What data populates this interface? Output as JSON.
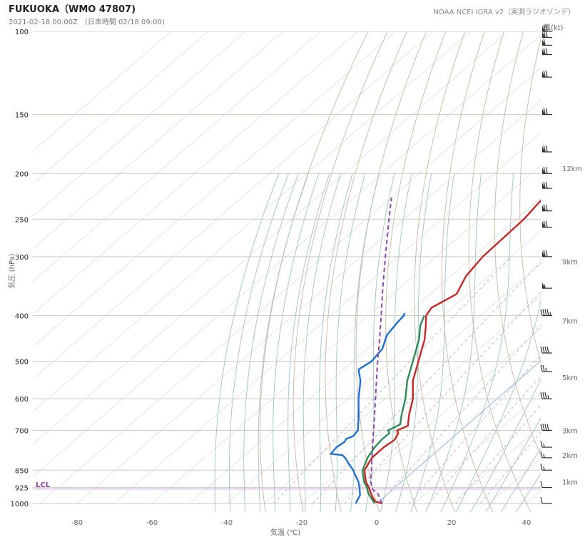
{
  "header": {
    "title": "FUKUOKA（WMO 47807)",
    "subtitle": "2021-02-18 00:00Z　(日本時間 02/18 09:00)",
    "source": "NOAA NCEI IGRA v2（実測ラジオゾンデ）"
  },
  "chart_data": {
    "type": "skew-t",
    "xlabel": "気温 (℃)",
    "ylabel": "気圧 (hPa)",
    "xlim": [
      -92,
      44
    ],
    "ylim": [
      1030,
      100
    ],
    "y_scale": "log",
    "x_ticks": [
      -80,
      -60,
      -40,
      -20,
      0,
      20,
      40
    ],
    "pressure_ticks": [
      100,
      150,
      200,
      250,
      300,
      400,
      500,
      600,
      700,
      850,
      925,
      1000
    ],
    "wind_label": "風(kt)",
    "lcl_label": "LCL",
    "lcl_pressure": 932,
    "height_labels": [
      {
        "label": "1km",
        "p": 900
      },
      {
        "label": "2km",
        "p": 790
      },
      {
        "label": "3km",
        "p": 700
      },
      {
        "label": "5km",
        "p": 540
      },
      {
        "label": "7km",
        "p": 410
      },
      {
        "label": "9km",
        "p": 307
      },
      {
        "label": "12km",
        "p": 195
      }
    ],
    "series": [
      {
        "key": "temperature",
        "color": "#c62828",
        "points": [
          [
            1000,
            1.4
          ],
          [
            990,
            -1
          ],
          [
            975,
            -2.5
          ],
          [
            950,
            -4.8
          ],
          [
            925,
            -7
          ],
          [
            900,
            -9.5
          ],
          [
            875,
            -11.5
          ],
          [
            850,
            -13.5
          ],
          [
            800,
            -15.3
          ],
          [
            760,
            -15.4
          ],
          [
            735,
            -14.8
          ],
          [
            730,
            -14.9
          ],
          [
            710,
            -15.8
          ],
          [
            700,
            -17
          ],
          [
            685,
            -15.5
          ],
          [
            650,
            -18.5
          ],
          [
            600,
            -22.5
          ],
          [
            550,
            -28
          ],
          [
            500,
            -32.5
          ],
          [
            450,
            -37.5
          ],
          [
            420,
            -41.5
          ],
          [
            400,
            -44.5
          ],
          [
            385,
            -45.5
          ],
          [
            360,
            -43
          ],
          [
            330,
            -46
          ],
          [
            300,
            -47.5
          ],
          [
            250,
            -48
          ],
          [
            200,
            -51
          ],
          [
            170,
            -55
          ],
          [
            150,
            -57
          ],
          [
            130,
            -59
          ],
          [
            120,
            -58
          ],
          [
            110,
            -59
          ],
          [
            100,
            -61
          ]
        ]
      },
      {
        "key": "wetbulb",
        "color": "#2e8b57",
        "points": [
          [
            1000,
            -0.5
          ],
          [
            975,
            -3
          ],
          [
            950,
            -5.5
          ],
          [
            925,
            -7.5
          ],
          [
            900,
            -10
          ],
          [
            875,
            -12
          ],
          [
            850,
            -14
          ],
          [
            800,
            -16.5
          ],
          [
            760,
            -17.8
          ],
          [
            730,
            -18.3
          ],
          [
            710,
            -18.2
          ],
          [
            700,
            -19.4
          ],
          [
            680,
            -18
          ],
          [
            650,
            -20.5
          ],
          [
            600,
            -24.5
          ],
          [
            550,
            -29.5
          ],
          [
            500,
            -34
          ],
          [
            450,
            -39
          ],
          [
            420,
            -43
          ],
          [
            400,
            -45
          ]
        ]
      },
      {
        "key": "dewpoint",
        "color": "#1f6fd1",
        "points": [
          [
            1000,
            -5.5
          ],
          [
            990,
            -6
          ],
          [
            960,
            -7
          ],
          [
            925,
            -9.5
          ],
          [
            900,
            -11.5
          ],
          [
            875,
            -14
          ],
          [
            850,
            -16.5
          ],
          [
            825,
            -19.5
          ],
          [
            800,
            -22.5
          ],
          [
            790,
            -24
          ],
          [
            785,
            -27.5
          ],
          [
            760,
            -28
          ],
          [
            740,
            -27.5
          ],
          [
            730,
            -28
          ],
          [
            720,
            -27
          ],
          [
            700,
            -27.5
          ],
          [
            660,
            -31
          ],
          [
            600,
            -37
          ],
          [
            550,
            -42
          ],
          [
            520,
            -46
          ],
          [
            500,
            -45
          ],
          [
            470,
            -46
          ],
          [
            440,
            -49
          ],
          [
            415,
            -50
          ],
          [
            400,
            -50.5
          ],
          [
            395,
            -51
          ]
        ]
      },
      {
        "key": "parcel",
        "color": "#8e44ad",
        "dashed": true,
        "points": [
          [
            1000,
            1.4
          ],
          [
            950,
            -3
          ],
          [
            932,
            -5.6
          ],
          [
            900,
            -8.2
          ],
          [
            850,
            -11.6
          ],
          [
            800,
            -15.3
          ],
          [
            750,
            -19.2
          ],
          [
            700,
            -23.3
          ],
          [
            650,
            -27.7
          ],
          [
            600,
            -32.5
          ],
          [
            550,
            -37.7
          ],
          [
            500,
            -43.4
          ],
          [
            450,
            -49.5
          ],
          [
            400,
            -56.5
          ],
          [
            350,
            -64.5
          ],
          [
            300,
            -73.5
          ],
          [
            250,
            -84
          ],
          [
            225,
            -90
          ]
        ]
      }
    ],
    "wind_barbs": [
      {
        "p": 1000,
        "kt": 10
      },
      {
        "p": 925,
        "kt": 10
      },
      {
        "p": 850,
        "kt": 15
      },
      {
        "p": 800,
        "kt": 15
      },
      {
        "p": 760,
        "kt": 15
      },
      {
        "p": 700,
        "kt": 40
      },
      {
        "p": 600,
        "kt": 35
      },
      {
        "p": 525,
        "kt": 25
      },
      {
        "p": 480,
        "kt": 40
      },
      {
        "p": 400,
        "kt": 45
      },
      {
        "p": 350,
        "kt": 55
      },
      {
        "p": 300,
        "kt": 70
      },
      {
        "p": 260,
        "kt": 70
      },
      {
        "p": 240,
        "kt": 70
      },
      {
        "p": 215,
        "kt": 70
      },
      {
        "p": 200,
        "kt": 70
      },
      {
        "p": 180,
        "kt": 70
      },
      {
        "p": 150,
        "kt": 70
      },
      {
        "p": 125,
        "kt": 70
      },
      {
        "p": 112,
        "kt": 70
      },
      {
        "p": 107,
        "kt": 60
      },
      {
        "p": 103,
        "kt": 70
      },
      {
        "p": 100,
        "kt": 70
      }
    ],
    "colors": {
      "dry_adiabat": "#c8b8a0",
      "moist_adiabat": "#9cc6c0",
      "mixing_ratio": "#b8b0e0",
      "grid": "#d9d6ce",
      "zero_line": "#8fb8e6",
      "lcl_line": "#d6b0e6",
      "lcl_text": "#8e44ad"
    }
  }
}
